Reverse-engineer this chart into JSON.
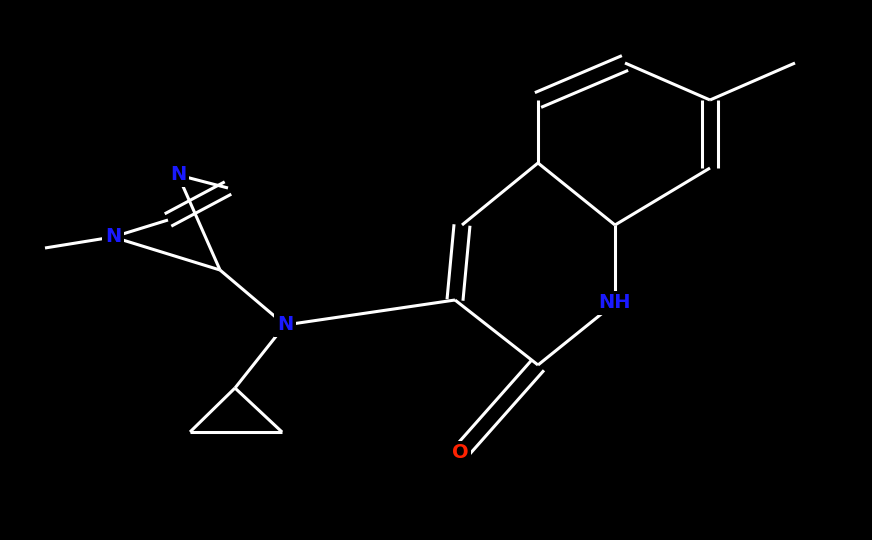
{
  "background_color": "#000000",
  "bond_color": "#ffffff",
  "atom_colors": {
    "N": "#1a1aff",
    "NH": "#1a1aff",
    "O": "#ff2200",
    "C": "#ffffff"
  },
  "font_size": 14,
  "bond_width": 2.2,
  "figsize": [
    8.72,
    5.4
  ],
  "dpi": 100,
  "xlim": [
    0,
    8.72
  ],
  "ylim": [
    0,
    5.4
  ]
}
